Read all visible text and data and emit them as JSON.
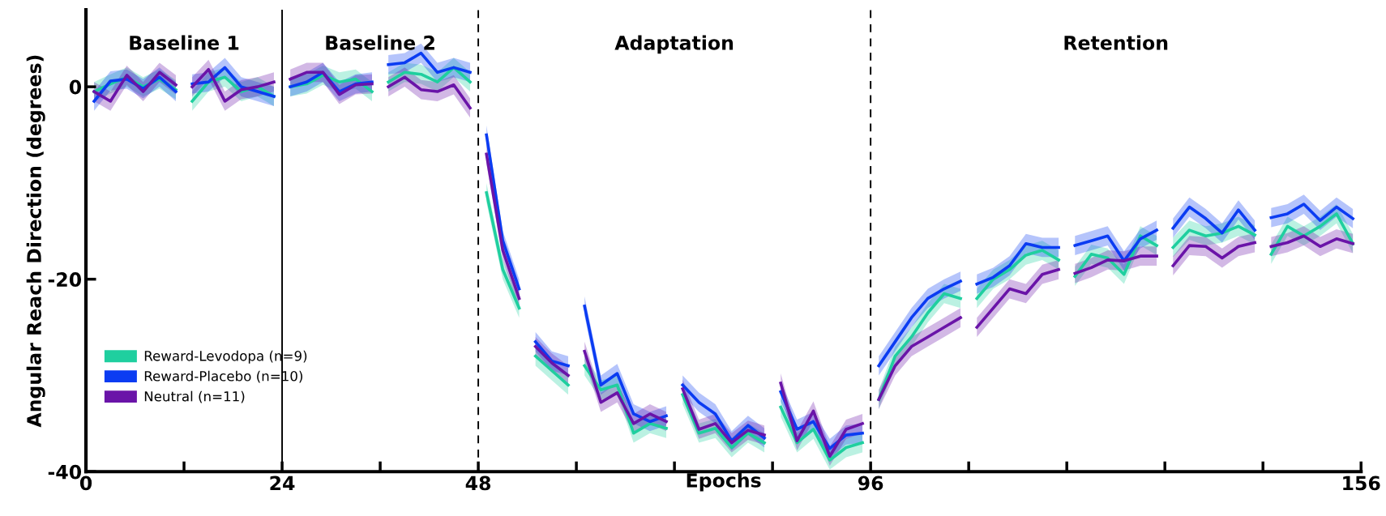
{
  "chart_data": {
    "type": "line",
    "xlabel": "Epochs",
    "ylabel": "Angular Reach Direction (degrees)",
    "x": [
      1,
      3,
      5,
      7,
      9,
      11,
      12,
      13,
      15,
      17,
      19,
      21,
      23,
      24,
      25,
      27,
      29,
      31,
      33,
      35,
      36,
      37,
      39,
      41,
      43,
      45,
      47,
      48,
      49,
      51,
      53,
      54,
      55,
      57,
      59,
      60,
      61,
      63,
      65,
      67,
      69,
      71,
      72,
      73,
      75,
      77,
      79,
      81,
      83,
      84,
      85,
      87,
      89,
      91,
      93,
      95,
      96,
      97,
      99,
      101,
      103,
      105,
      107,
      108,
      109,
      111,
      113,
      115,
      117,
      119,
      120,
      121,
      123,
      125,
      127,
      129,
      131,
      132,
      133,
      135,
      137,
      139,
      141,
      143,
      144,
      145,
      147,
      149,
      151,
      153,
      155
    ],
    "series": [
      {
        "name": "Reward-Levodopa (n=9)",
        "color": "#1fcf9f",
        "values": [
          -0.5,
          0.3,
          1,
          0,
          0.8,
          -0.3,
          null,
          -1.5,
          0.5,
          1,
          -0.5,
          0,
          -1,
          null,
          0,
          0.3,
          1.2,
          0.5,
          0.8,
          -0.5,
          null,
          0.5,
          1.5,
          1.3,
          0.5,
          2,
          0.5,
          null,
          -11,
          -19,
          -23,
          null,
          -28,
          -29.5,
          -31,
          null,
          -29,
          -31.5,
          -31,
          -36,
          -35,
          -35.5,
          null,
          -32,
          -36,
          -35.5,
          -37.5,
          -36,
          -37,
          null,
          -33.3,
          -37,
          -35.6,
          -38.8,
          -37.5,
          -37,
          null,
          -32.5,
          -28,
          -26,
          -23.5,
          -21.5,
          -22,
          null,
          -22,
          -20,
          -19,
          -17.5,
          -17,
          -18,
          null,
          -19.7,
          -17.4,
          -17.8,
          -19.5,
          -15.5,
          -16.5,
          null,
          -16.7,
          -14.9,
          -15.5,
          -15.2,
          -14.5,
          -15.4,
          null,
          -17.4,
          -14.5,
          -15.5,
          -14.5,
          -13.2,
          -16.3
        ],
        "lower": [
          -1.5,
          -0.7,
          0,
          -1,
          -0.2,
          -1.3,
          null,
          -2.5,
          -0.5,
          0,
          -1.5,
          -1,
          -2,
          null,
          -1,
          -0.7,
          0.2,
          -0.5,
          -0.2,
          -1.5,
          null,
          -0.5,
          0.5,
          0.3,
          -0.5,
          1,
          -0.5,
          null,
          -12,
          -20,
          -24,
          null,
          -29,
          -30.5,
          -32,
          null,
          -30,
          -32.5,
          -32,
          -37,
          -36,
          -36.5,
          null,
          -33,
          -37,
          -36.5,
          -38.5,
          -37,
          -38,
          null,
          -34.3,
          -38,
          -36.6,
          -39.8,
          -38.5,
          -38,
          null,
          -33.5,
          -29,
          -27,
          -24.5,
          -22.5,
          -23,
          null,
          -23,
          -21,
          -20,
          -18.5,
          -18,
          -19,
          null,
          -20.7,
          -18.4,
          -18.8,
          -20.5,
          -16.5,
          -17.5,
          null,
          -17.7,
          -15.9,
          -16.5,
          -16.2,
          -15.5,
          -16.4,
          null,
          -18.4,
          -15.5,
          -16.5,
          -15.5,
          -14.2,
          -17.3
        ],
        "upper": [
          0.5,
          1.3,
          2,
          1,
          1.8,
          0.7,
          null,
          -0.5,
          1.5,
          2,
          0.5,
          1,
          0,
          null,
          1,
          1.3,
          2.2,
          1.5,
          1.8,
          0.5,
          null,
          1.5,
          2.5,
          2.3,
          1.5,
          3,
          1.5,
          null,
          -10,
          -18,
          -22,
          null,
          -27,
          -28.5,
          -30,
          null,
          -28,
          -30.5,
          -30,
          -35,
          -34,
          -34.5,
          null,
          -31,
          -35,
          -34.5,
          -36.5,
          -35,
          -36,
          null,
          -32.3,
          -36,
          -34.6,
          -37.8,
          -36.5,
          -36,
          null,
          -31.5,
          -27,
          -25,
          -22.5,
          -20.5,
          -21,
          null,
          -21,
          -19,
          -18,
          -16.5,
          -16,
          -17,
          null,
          -18.7,
          -16.4,
          -16.8,
          -18.5,
          -14.5,
          -15.5,
          null,
          -15.7,
          -13.9,
          -14.5,
          -14.2,
          -13.5,
          -14.4,
          null,
          -16.4,
          -13.5,
          -14.5,
          -13.5,
          -12.2,
          -15.3
        ]
      },
      {
        "name": "Reward-Placebo (n=10)",
        "color": "#0b3cf2",
        "values": [
          -1.5,
          0.6,
          0.8,
          -0.2,
          1,
          -0.5,
          null,
          0.3,
          0.5,
          2,
          0,
          -0.5,
          -1,
          null,
          0,
          0.5,
          1.5,
          -0.5,
          0.3,
          0.5,
          null,
          2.3,
          2.5,
          3.5,
          1.5,
          2,
          1.5,
          null,
          -5,
          -16,
          -21,
          null,
          -26.5,
          -28.5,
          -29,
          null,
          -22.8,
          -31,
          -29.8,
          -34,
          -34.8,
          -34.2,
          null,
          -31,
          -32.8,
          -34,
          -36.8,
          -35.2,
          -36.5,
          null,
          -31.7,
          -35.6,
          -34.8,
          -37.6,
          -36.2,
          -36,
          null,
          -29,
          -26.5,
          -24,
          -22,
          -21,
          -20.2,
          null,
          -20.5,
          -19.8,
          -18.6,
          -16.3,
          -16.7,
          -16.7,
          null,
          -16.5,
          -16,
          -15.5,
          -18.1,
          -15.8,
          -14.9,
          null,
          -14.7,
          -12.5,
          -13.7,
          -15.2,
          -12.8,
          -14.9,
          null,
          -13.6,
          -13.2,
          -12.2,
          -13.9,
          -12.5,
          -13.7
        ],
        "lower": [
          -2.5,
          -0.4,
          -0.2,
          -1.2,
          0,
          -1.5,
          null,
          -0.7,
          -0.5,
          1,
          -1,
          -1.5,
          -2,
          null,
          -1,
          -0.5,
          0.5,
          -1.5,
          -0.7,
          -0.5,
          null,
          1.3,
          1.5,
          2.5,
          0.5,
          1,
          0.5,
          null,
          -6,
          -17,
          -22,
          null,
          -27.5,
          -29.5,
          -30,
          null,
          -23.8,
          -32,
          -30.8,
          -35,
          -35.8,
          -35.2,
          null,
          -32,
          -33.8,
          -35,
          -37.8,
          -36.2,
          -37.5,
          null,
          -32.7,
          -36.6,
          -35.8,
          -38.6,
          -37.2,
          -37,
          null,
          -30,
          -27.5,
          -25,
          -23,
          -22,
          -21.2,
          null,
          -21.5,
          -20.8,
          -19.6,
          -17.3,
          -17.7,
          -17.7,
          null,
          -17.5,
          -17,
          -16.5,
          -19.1,
          -16.8,
          -15.9,
          null,
          -15.7,
          -13.5,
          -14.7,
          -16.2,
          -13.8,
          -15.9,
          null,
          -14.6,
          -14.2,
          -13.2,
          -14.9,
          -13.5,
          -14.7
        ],
        "upper": [
          -0.5,
          1.6,
          1.8,
          0.8,
          2,
          0.5,
          null,
          1.3,
          1.5,
          3,
          1,
          0.5,
          0,
          null,
          1,
          1.5,
          2.5,
          0.5,
          1.3,
          1.5,
          null,
          3.3,
          3.5,
          4.5,
          2.5,
          3,
          2.5,
          null,
          -4,
          -15,
          -20,
          null,
          -25.5,
          -27.5,
          -28,
          null,
          -21.8,
          -30,
          -28.8,
          -33,
          -33.8,
          -33.2,
          null,
          -30,
          -31.8,
          -33,
          -35.8,
          -34.2,
          -35.5,
          null,
          -30.7,
          -34.6,
          -33.8,
          -36.6,
          -35.2,
          -35,
          null,
          -28,
          -25.5,
          -23,
          -21,
          -20,
          -19.2,
          null,
          -19.5,
          -18.8,
          -17.6,
          -15.3,
          -15.7,
          -15.7,
          null,
          -15.5,
          -15,
          -14.5,
          -17.1,
          -14.8,
          -13.9,
          null,
          -13.7,
          -11.5,
          -12.7,
          -14.2,
          -11.8,
          -13.9,
          null,
          -12.6,
          -12.2,
          -11.2,
          -12.9,
          -11.5,
          -12.7
        ]
      },
      {
        "name": "Neutral (n=11)",
        "color": "#6a14a8",
        "values": [
          -0.5,
          -1.5,
          1.2,
          -0.5,
          1.5,
          0.2,
          null,
          0,
          1.8,
          -1.5,
          -0.3,
          0,
          0.5,
          null,
          0.8,
          1.5,
          1.5,
          -0.8,
          0.2,
          0.3,
          null,
          0,
          1,
          -0.3,
          -0.5,
          0.2,
          -2.2,
          null,
          -7,
          -17,
          -22,
          null,
          -27,
          -28.7,
          -30,
          null,
          -27.5,
          -32.8,
          -31.8,
          -35,
          -34,
          -34.8,
          null,
          -31.4,
          -35.6,
          -35,
          -37,
          -35.7,
          -36.2,
          null,
          -30.8,
          -36.8,
          -33.7,
          -38.4,
          -35.6,
          -35,
          null,
          -32.5,
          -29,
          -27,
          -26,
          -25,
          -24,
          null,
          -25,
          -23,
          -21,
          -21.5,
          -19.5,
          -19,
          null,
          -19.4,
          -18.8,
          -18,
          -18.1,
          -17.6,
          -17.6,
          null,
          -18.6,
          -16.5,
          -16.6,
          -17.8,
          -16.6,
          -16.2,
          null,
          -16.6,
          -16.2,
          -15.5,
          -16.6,
          -15.8,
          -16.3
        ],
        "lower": [
          -1.5,
          -2.5,
          0.2,
          -1.5,
          0.5,
          -0.8,
          null,
          -1,
          0.8,
          -2.5,
          -1.3,
          -1,
          -0.5,
          null,
          -0.2,
          0.5,
          0.5,
          -1.8,
          -0.8,
          -0.7,
          null,
          -1,
          0,
          -1.3,
          -1.5,
          -0.8,
          -3.2,
          null,
          -8,
          -18,
          -23,
          null,
          -28,
          -29.7,
          -31,
          null,
          -28.5,
          -33.8,
          -32.8,
          -36,
          -35,
          -35.8,
          null,
          -32.4,
          -36.6,
          -36,
          -38,
          -36.7,
          -37.2,
          null,
          -31.8,
          -37.8,
          -34.7,
          -39.4,
          -36.6,
          -36,
          null,
          -33.5,
          -30,
          -28,
          -27,
          -26,
          -25,
          null,
          -26,
          -24,
          -22,
          -22.5,
          -20.5,
          -20,
          null,
          -20.4,
          -19.8,
          -19,
          -19.1,
          -18.6,
          -18.6,
          null,
          -19.6,
          -17.5,
          -17.6,
          -18.8,
          -17.6,
          -17.2,
          null,
          -17.6,
          -17.2,
          -16.5,
          -17.6,
          -16.8,
          -17.3
        ],
        "upper": [
          0.5,
          -0.5,
          2.2,
          0.5,
          2.5,
          1.2,
          null,
          1,
          2.8,
          -0.5,
          0.7,
          1,
          1.5,
          null,
          1.8,
          2.5,
          2.5,
          0.2,
          1.2,
          1.3,
          null,
          1,
          2,
          0.7,
          0.5,
          1.2,
          -1.2,
          null,
          -6,
          -16,
          -21,
          null,
          -26,
          -27.7,
          -29,
          null,
          -26.5,
          -31.8,
          -30.8,
          -34,
          -33,
          -33.8,
          null,
          -30.4,
          -34.6,
          -34,
          -36,
          -34.7,
          -35.2,
          null,
          -29.8,
          -35.8,
          -32.7,
          -37.4,
          -34.6,
          -34,
          null,
          -31.5,
          -28,
          -26,
          -25,
          -24,
          -23,
          null,
          -24,
          -22,
          -20,
          -20.5,
          -18.5,
          -18,
          null,
          -18.4,
          -17.8,
          -17,
          -17.1,
          -16.6,
          -16.6,
          null,
          -17.6,
          -15.5,
          -15.6,
          -16.8,
          -15.6,
          -15.2,
          null,
          -15.6,
          -15.2,
          -14.5,
          -15.6,
          -14.8,
          -15.3
        ]
      }
    ],
    "xlim": [
      0,
      156
    ],
    "ylim": [
      -40,
      8
    ],
    "xticks": [
      0,
      {
        "value": 12,
        "label": null
      },
      24,
      {
        "value": 36,
        "label": null
      },
      48,
      {
        "value": 60,
        "label": null
      },
      {
        "value": 72,
        "label": null
      },
      {
        "value": 84,
        "label": null
      },
      96,
      {
        "value": 108,
        "label": null
      },
      {
        "value": 120,
        "label": null
      },
      {
        "value": 132,
        "label": null
      },
      {
        "value": 144,
        "label": null
      },
      156
    ],
    "yticks": [
      0,
      -20,
      -40
    ],
    "ref_lines": [
      {
        "axis": "x",
        "value": 24,
        "line_style": "solid",
        "color": "#000000"
      },
      {
        "axis": "x",
        "value": 48,
        "line_style": "dashed",
        "color": "#000000"
      },
      {
        "axis": "x",
        "value": 96,
        "line_style": "dashed",
        "color": "#000000"
      }
    ],
    "annotations": [
      "Baseline 1",
      "Baseline 2",
      "Adaptation",
      "Retention"
    ],
    "legend": "bottom left",
    "grid": false,
    "marker": "none",
    "line_style": "solid"
  }
}
